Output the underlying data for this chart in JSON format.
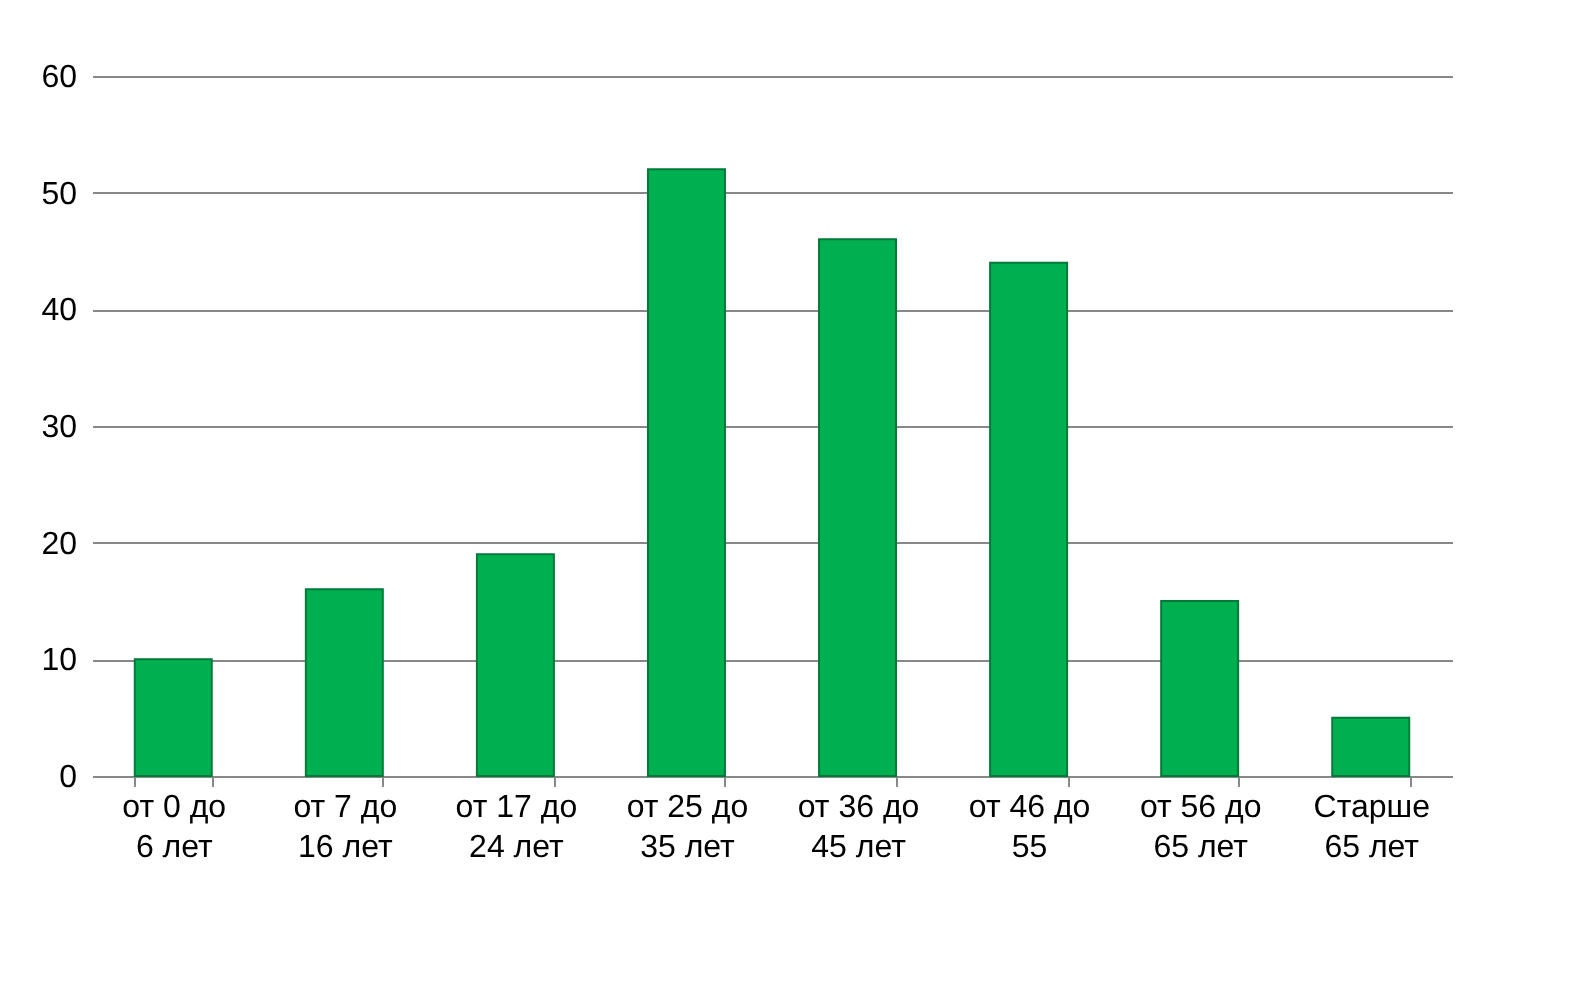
{
  "chart_data": {
    "type": "bar",
    "categories": [
      "от 0 до 6 лет",
      "от 7 до 16 лет",
      "от 17 до 24 лет",
      "от 25 до 35 лет",
      "от 36 до 45 лет",
      "от 46 до 55",
      "от 56 до 65 лет",
      "Старше 65 лет"
    ],
    "values": [
      10,
      16,
      19,
      52,
      46,
      44,
      15,
      5
    ],
    "color": "#00b050",
    "ylim": [
      0,
      60
    ],
    "yticks": [
      0,
      10,
      20,
      30,
      40,
      50,
      60
    ],
    "grid": "y"
  }
}
